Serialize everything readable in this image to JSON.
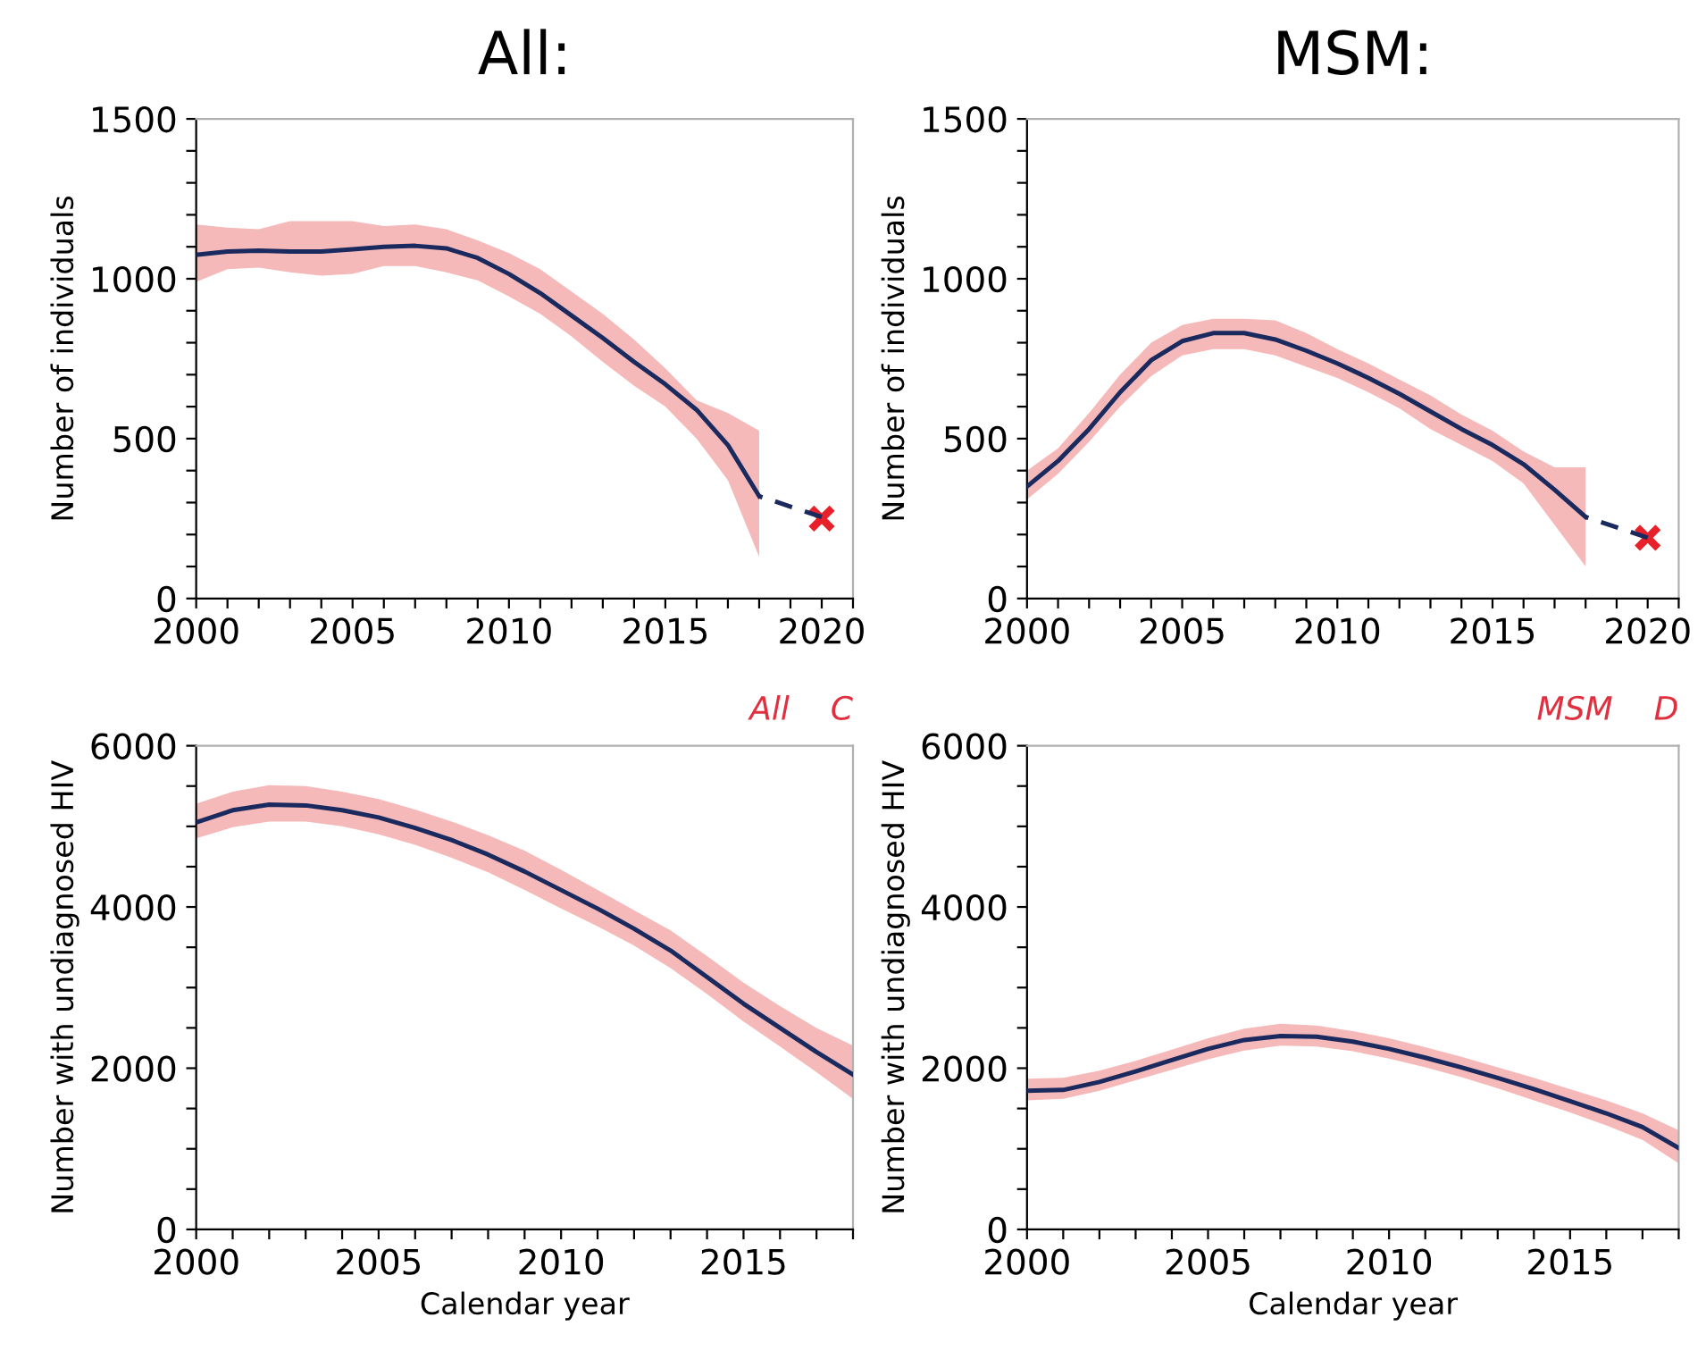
{
  "chart_data": [
    {
      "type": "line",
      "title": "All:",
      "ylabel": "Number of individuals",
      "xlim": [
        2000,
        2021
      ],
      "ylim": [
        0,
        1500
      ],
      "xticks": [
        2000,
        {
          "value": 2001,
          "label": null
        },
        {
          "value": 2002,
          "label": null
        },
        {
          "value": 2003,
          "label": null
        },
        {
          "value": 2004,
          "label": null
        },
        2005,
        {
          "value": 2006,
          "label": null
        },
        {
          "value": 2007,
          "label": null
        },
        {
          "value": 2008,
          "label": null
        },
        {
          "value": 2009,
          "label": null
        },
        2010,
        {
          "value": 2011,
          "label": null
        },
        {
          "value": 2012,
          "label": null
        },
        {
          "value": 2013,
          "label": null
        },
        {
          "value": 2014,
          "label": null
        },
        2015,
        {
          "value": 2016,
          "label": null
        },
        {
          "value": 2017,
          "label": null
        },
        {
          "value": 2018,
          "label": null
        },
        {
          "value": 2019,
          "label": null
        },
        2020,
        {
          "value": 2021,
          "label": null
        }
      ],
      "yticks": [
        0,
        {
          "value": 100,
          "label": null
        },
        {
          "value": 200,
          "label": null
        },
        {
          "value": 300,
          "label": null
        },
        {
          "value": 400,
          "label": null
        },
        500,
        {
          "value": 600,
          "label": null
        },
        {
          "value": 700,
          "label": null
        },
        {
          "value": 800,
          "label": null
        },
        {
          "value": 900,
          "label": null
        },
        1000,
        {
          "value": 1100,
          "label": null
        },
        {
          "value": 1200,
          "label": null
        },
        {
          "value": 1300,
          "label": null
        },
        {
          "value": 1400,
          "label": null
        },
        1500
      ],
      "series": [
        {
          "type": "line",
          "color": "#1a2a5e",
          "x": [
            2000,
            2001,
            2002,
            2003,
            2004,
            2005,
            2006,
            2007,
            2008,
            2009,
            2010,
            2011,
            2012,
            2013,
            2014,
            2015,
            2016,
            2017,
            2018
          ],
          "values": [
            1075,
            1085,
            1088,
            1085,
            1085,
            1092,
            1100,
            1103,
            1095,
            1065,
            1015,
            955,
            885,
            815,
            740,
            670,
            590,
            480,
            320
          ],
          "lower": [
            990,
            1030,
            1035,
            1020,
            1010,
            1015,
            1040,
            1040,
            1020,
            995,
            945,
            890,
            820,
            740,
            665,
            600,
            500,
            370,
            130
          ],
          "upper": [
            1170,
            1160,
            1155,
            1180,
            1180,
            1180,
            1165,
            1170,
            1155,
            1120,
            1080,
            1030,
            960,
            890,
            810,
            720,
            620,
            580,
            525
          ]
        },
        {
          "type": "line",
          "color": "#1a2a5e",
          "line_style": "dashed",
          "x": [
            2018,
            2020
          ],
          "values": [
            320,
            255
          ]
        },
        {
          "type": "scatter",
          "color": "#e8202a",
          "marker": "cross",
          "x": [
            2020
          ],
          "values": [
            250
          ]
        }
      ]
    },
    {
      "type": "line",
      "title": "MSM:",
      "ylabel": "Number of individuals",
      "xlim": [
        2000,
        2021
      ],
      "ylim": [
        0,
        1500
      ],
      "xticks": [
        2000,
        {
          "value": 2001,
          "label": null
        },
        {
          "value": 2002,
          "label": null
        },
        {
          "value": 2003,
          "label": null
        },
        {
          "value": 2004,
          "label": null
        },
        2005,
        {
          "value": 2006,
          "label": null
        },
        {
          "value": 2007,
          "label": null
        },
        {
          "value": 2008,
          "label": null
        },
        {
          "value": 2009,
          "label": null
        },
        2010,
        {
          "value": 2011,
          "label": null
        },
        {
          "value": 2012,
          "label": null
        },
        {
          "value": 2013,
          "label": null
        },
        {
          "value": 2014,
          "label": null
        },
        2015,
        {
          "value": 2016,
          "label": null
        },
        {
          "value": 2017,
          "label": null
        },
        {
          "value": 2018,
          "label": null
        },
        {
          "value": 2019,
          "label": null
        },
        2020,
        {
          "value": 2021,
          "label": null
        }
      ],
      "yticks": [
        0,
        {
          "value": 100,
          "label": null
        },
        {
          "value": 200,
          "label": null
        },
        {
          "value": 300,
          "label": null
        },
        {
          "value": 400,
          "label": null
        },
        500,
        {
          "value": 600,
          "label": null
        },
        {
          "value": 700,
          "label": null
        },
        {
          "value": 800,
          "label": null
        },
        {
          "value": 900,
          "label": null
        },
        1000,
        {
          "value": 1100,
          "label": null
        },
        {
          "value": 1200,
          "label": null
        },
        {
          "value": 1300,
          "label": null
        },
        {
          "value": 1400,
          "label": null
        },
        1500
      ],
      "series": [
        {
          "type": "line",
          "color": "#1a2a5e",
          "x": [
            2000,
            2001,
            2002,
            2003,
            2004,
            2005,
            2006,
            2007,
            2008,
            2009,
            2010,
            2011,
            2012,
            2013,
            2014,
            2015,
            2016,
            2017,
            2018
          ],
          "values": [
            350,
            430,
            530,
            645,
            745,
            805,
            830,
            830,
            810,
            775,
            735,
            690,
            640,
            585,
            530,
            480,
            420,
            340,
            255
          ],
          "lower": [
            310,
            390,
            490,
            600,
            695,
            760,
            780,
            780,
            760,
            725,
            690,
            645,
            595,
            530,
            480,
            430,
            360,
            230,
            100
          ],
          "upper": [
            400,
            470,
            580,
            700,
            800,
            855,
            875,
            875,
            870,
            830,
            780,
            735,
            685,
            635,
            575,
            525,
            460,
            410,
            410
          ]
        },
        {
          "type": "line",
          "color": "#1a2a5e",
          "line_style": "dashed",
          "x": [
            2018,
            2020
          ],
          "values": [
            255,
            190
          ]
        },
        {
          "type": "scatter",
          "color": "#e8202a",
          "marker": "cross",
          "x": [
            2020
          ],
          "values": [
            190
          ]
        }
      ]
    },
    {
      "type": "line",
      "xlabel": "Calendar year",
      "ylabel": "Number with undiagnosed HIV",
      "annotations": [
        "All    C"
      ],
      "xlim": [
        2000,
        2018
      ],
      "ylim": [
        0,
        6000
      ],
      "xticks": [
        2000,
        {
          "value": 2001,
          "label": null
        },
        {
          "value": 2002,
          "label": null
        },
        {
          "value": 2003,
          "label": null
        },
        {
          "value": 2004,
          "label": null
        },
        2005,
        {
          "value": 2006,
          "label": null
        },
        {
          "value": 2007,
          "label": null
        },
        {
          "value": 2008,
          "label": null
        },
        {
          "value": 2009,
          "label": null
        },
        2010,
        {
          "value": 2011,
          "label": null
        },
        {
          "value": 2012,
          "label": null
        },
        {
          "value": 2013,
          "label": null
        },
        {
          "value": 2014,
          "label": null
        },
        2015,
        {
          "value": 2016,
          "label": null
        },
        {
          "value": 2017,
          "label": null
        },
        {
          "value": 2018,
          "label": null
        }
      ],
      "yticks": [
        0,
        {
          "value": 500,
          "label": null
        },
        {
          "value": 1000,
          "label": null
        },
        {
          "value": 1500,
          "label": null
        },
        2000,
        {
          "value": 2500,
          "label": null
        },
        {
          "value": 3000,
          "label": null
        },
        {
          "value": 3500,
          "label": null
        },
        4000,
        {
          "value": 4500,
          "label": null
        },
        {
          "value": 5000,
          "label": null
        },
        {
          "value": 5500,
          "label": null
        },
        6000
      ],
      "series": [
        {
          "type": "line",
          "color": "#1a2a5e",
          "x": [
            2000,
            2001,
            2002,
            2003,
            2004,
            2005,
            2006,
            2007,
            2008,
            2009,
            2010,
            2011,
            2012,
            2013,
            2014,
            2015,
            2016,
            2017,
            2018
          ],
          "values": [
            5050,
            5200,
            5270,
            5260,
            5200,
            5110,
            4980,
            4830,
            4650,
            4440,
            4210,
            3980,
            3730,
            3460,
            3130,
            2800,
            2500,
            2200,
            1920
          ],
          "lower": [
            4850,
            4990,
            5060,
            5060,
            5000,
            4900,
            4770,
            4610,
            4430,
            4210,
            3980,
            3760,
            3520,
            3240,
            2920,
            2580,
            2270,
            1950,
            1620
          ],
          "upper": [
            5280,
            5430,
            5510,
            5500,
            5430,
            5340,
            5210,
            5060,
            4890,
            4700,
            4460,
            4210,
            3960,
            3710,
            3390,
            3060,
            2770,
            2500,
            2280
          ]
        }
      ]
    },
    {
      "type": "line",
      "xlabel": "Calendar year",
      "ylabel": "Number with undiagnosed HIV",
      "annotations": [
        "MSM    D"
      ],
      "xlim": [
        2000,
        2018
      ],
      "ylim": [
        0,
        6000
      ],
      "xticks": [
        2000,
        {
          "value": 2001,
          "label": null
        },
        {
          "value": 2002,
          "label": null
        },
        {
          "value": 2003,
          "label": null
        },
        {
          "value": 2004,
          "label": null
        },
        2005,
        {
          "value": 2006,
          "label": null
        },
        {
          "value": 2007,
          "label": null
        },
        {
          "value": 2008,
          "label": null
        },
        {
          "value": 2009,
          "label": null
        },
        2010,
        {
          "value": 2011,
          "label": null
        },
        {
          "value": 2012,
          "label": null
        },
        {
          "value": 2013,
          "label": null
        },
        {
          "value": 2014,
          "label": null
        },
        2015,
        {
          "value": 2016,
          "label": null
        },
        {
          "value": 2017,
          "label": null
        },
        {
          "value": 2018,
          "label": null
        }
      ],
      "yticks": [
        0,
        {
          "value": 500,
          "label": null
        },
        {
          "value": 1000,
          "label": null
        },
        {
          "value": 1500,
          "label": null
        },
        2000,
        {
          "value": 2500,
          "label": null
        },
        {
          "value": 3000,
          "label": null
        },
        {
          "value": 3500,
          "label": null
        },
        4000,
        {
          "value": 4500,
          "label": null
        },
        {
          "value": 5000,
          "label": null
        },
        {
          "value": 5500,
          "label": null
        },
        6000
      ],
      "series": [
        {
          "type": "line",
          "color": "#1a2a5e",
          "x": [
            2000,
            2001,
            2002,
            2003,
            2004,
            2005,
            2006,
            2007,
            2008,
            2009,
            2010,
            2011,
            2012,
            2013,
            2014,
            2015,
            2016,
            2017,
            2018
          ],
          "values": [
            1720,
            1730,
            1830,
            1960,
            2100,
            2240,
            2350,
            2400,
            2390,
            2330,
            2240,
            2130,
            2010,
            1880,
            1740,
            1590,
            1440,
            1270,
            1010
          ],
          "lower": [
            1600,
            1620,
            1720,
            1850,
            1980,
            2110,
            2220,
            2280,
            2270,
            2210,
            2120,
            2010,
            1890,
            1750,
            1600,
            1450,
            1290,
            1110,
            820
          ],
          "upper": [
            1870,
            1880,
            1970,
            2090,
            2230,
            2370,
            2490,
            2550,
            2530,
            2460,
            2370,
            2260,
            2140,
            2010,
            1880,
            1740,
            1600,
            1440,
            1230
          ]
        }
      ]
    }
  ]
}
